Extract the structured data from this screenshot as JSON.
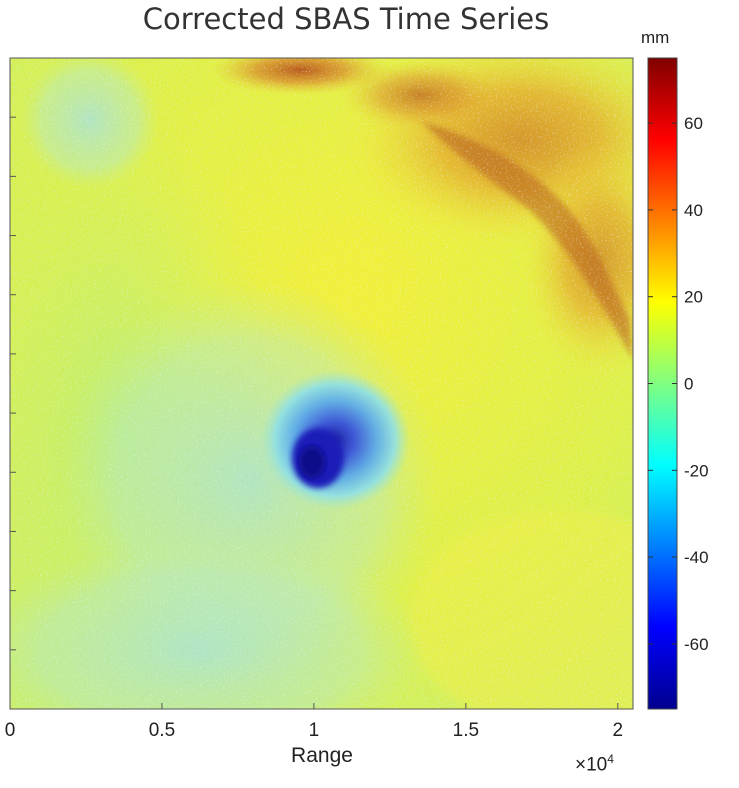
{
  "chart_data": {
    "type": "heatmap",
    "title": "Corrected SBAS Time Series",
    "xlabel": "Range",
    "x_exponent_label": "×10",
    "x_exponent_power": "4",
    "x_ticks": [
      0,
      0.5,
      1,
      1.5,
      2
    ],
    "x_tick_labels": [
      "0",
      "0.5",
      "1",
      "1.5",
      "2"
    ],
    "xlim": [
      0,
      2.05
    ],
    "y_ticks_count": 11,
    "colorbar": {
      "unit": "mm",
      "range": [
        -75,
        75
      ],
      "ticks": [
        60,
        40,
        20,
        0,
        -20,
        -40,
        -60
      ],
      "tick_labels": [
        "60",
        "40",
        "20",
        "0",
        "-20",
        "-40",
        "-60"
      ],
      "colormap": "jet"
    },
    "field_features": [
      {
        "label": "deformation bowl",
        "x": 0.98,
        "y_frac": 0.62,
        "value": -65
      },
      {
        "label": "uplift ridge",
        "x": 1.7,
        "y_frac": 0.2,
        "value": 40
      },
      {
        "label": "background",
        "value": 12
      }
    ]
  }
}
